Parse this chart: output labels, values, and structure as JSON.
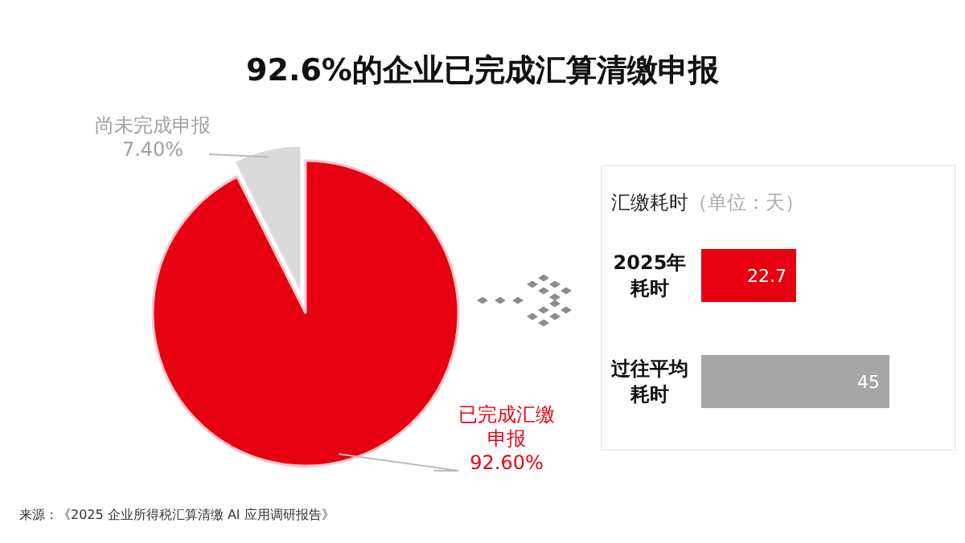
{
  "chart_data": [
    {
      "type": "pie",
      "title": "92.6%的企业已完成汇算清缴申报",
      "categories": [
        "已完成汇缴申报",
        "尚未完成申报"
      ],
      "values": [
        92.6,
        7.4
      ],
      "colors": [
        "#e60012",
        "#d9d9d9"
      ],
      "value_labels": [
        "92.60%",
        "7.40%"
      ],
      "annotations": [
        "来源：《2025 企业所得税汇算清缴 AI 应用调研报告》"
      ]
    },
    {
      "type": "bar",
      "orientation": "horizontal",
      "title": "汇缴耗时（单位：天）",
      "categories": [
        "2025年耗时",
        "过往平均耗时"
      ],
      "values": [
        22.7,
        45
      ],
      "colors": [
        "#e60012",
        "#a6a6a6"
      ],
      "data_labels": true
    }
  ]
}
